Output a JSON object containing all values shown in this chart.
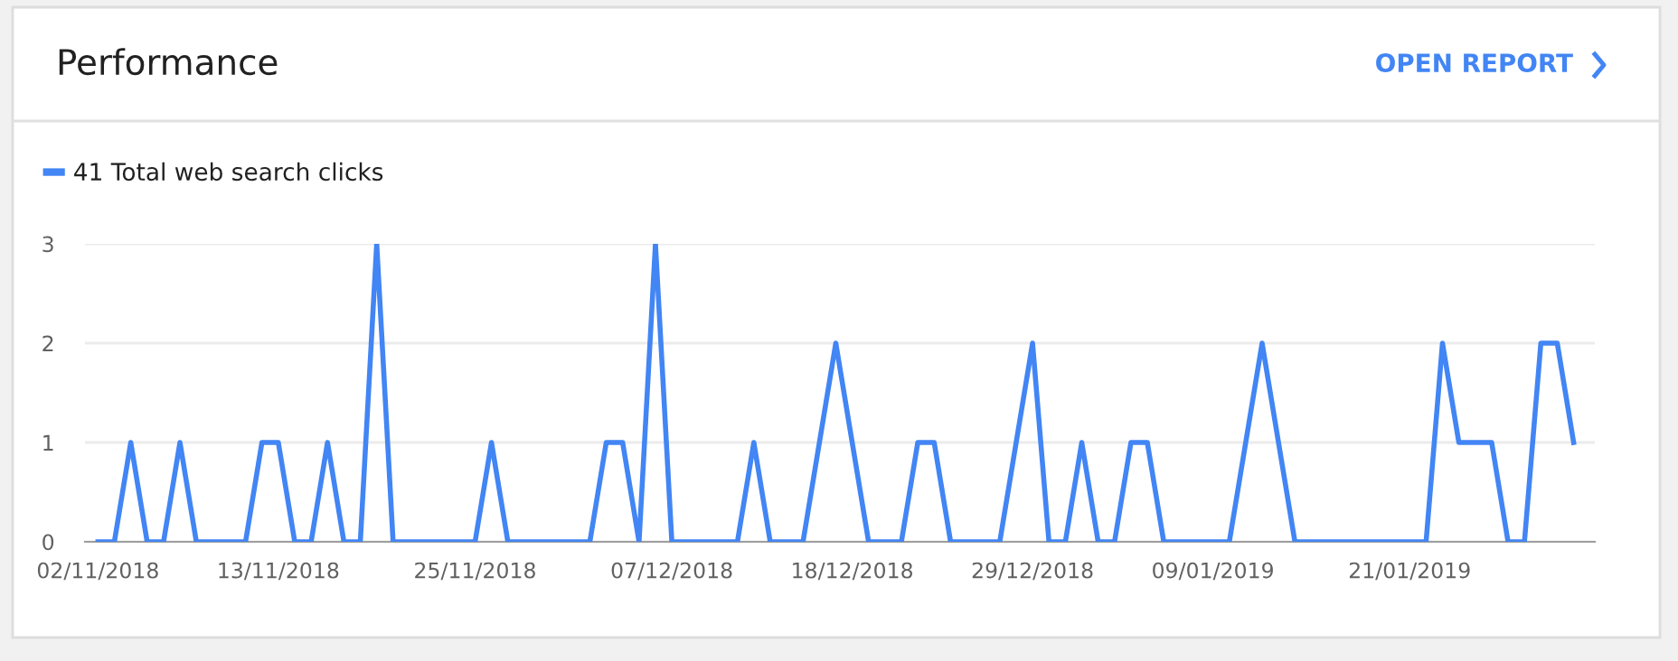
{
  "chart_data": {
    "type": "line",
    "title": "Performance",
    "annotations": [
      "OPEN REPORT"
    ],
    "x": [
      "2018-11-02",
      "2018-11-03",
      "2018-11-04",
      "2018-11-05",
      "2018-11-06",
      "2018-11-07",
      "2018-11-08",
      "2018-11-09",
      "2018-11-10",
      "2018-11-11",
      "2018-11-12",
      "2018-11-13",
      "2018-11-14",
      "2018-11-15",
      "2018-11-16",
      "2018-11-17",
      "2018-11-18",
      "2018-11-19",
      "2018-11-20",
      "2018-11-21",
      "2018-11-22",
      "2018-11-23",
      "2018-11-24",
      "2018-11-25",
      "2018-11-26",
      "2018-11-27",
      "2018-11-28",
      "2018-11-29",
      "2018-11-30",
      "2018-12-01",
      "2018-12-02",
      "2018-12-03",
      "2018-12-04",
      "2018-12-05",
      "2018-12-06",
      "2018-12-07",
      "2018-12-08",
      "2018-12-09",
      "2018-12-10",
      "2018-12-11",
      "2018-12-12",
      "2018-12-13",
      "2018-12-14",
      "2018-12-15",
      "2018-12-16",
      "2018-12-17",
      "2018-12-18",
      "2018-12-19",
      "2018-12-20",
      "2018-12-21",
      "2018-12-22",
      "2018-12-23",
      "2018-12-24",
      "2018-12-25",
      "2018-12-26",
      "2018-12-27",
      "2018-12-28",
      "2018-12-29",
      "2018-12-30",
      "2018-12-31",
      "2019-01-01",
      "2019-01-02",
      "2019-01-03",
      "2019-01-04",
      "2019-01-05",
      "2019-01-06",
      "2019-01-07",
      "2019-01-08",
      "2019-01-09",
      "2019-01-10",
      "2019-01-11",
      "2019-01-12",
      "2019-01-13",
      "2019-01-14",
      "2019-01-15",
      "2019-01-16",
      "2019-01-17",
      "2019-01-18",
      "2019-01-19",
      "2019-01-20",
      "2019-01-21",
      "2019-01-22",
      "2019-01-23",
      "2019-01-24",
      "2019-01-25",
      "2019-01-26",
      "2019-01-27",
      "2019-01-28",
      "2019-01-29",
      "2019-01-30",
      "2019-01-31"
    ],
    "series": [
      {
        "name": "41 Total web search clicks",
        "color": "#4285f4",
        "values": [
          0,
          0,
          1,
          0,
          0,
          1,
          0,
          0,
          0,
          0,
          1,
          1,
          0,
          0,
          1,
          0,
          0,
          3,
          0,
          0,
          0,
          0,
          0,
          0,
          1,
          0,
          0,
          0,
          0,
          0,
          0,
          1,
          1,
          0,
          3,
          0,
          0,
          0,
          0,
          0,
          1,
          0,
          0,
          0,
          1,
          2,
          1,
          0,
          0,
          0,
          1,
          1,
          0,
          0,
          0,
          0,
          1,
          2,
          0,
          0,
          1,
          0,
          0,
          1,
          1,
          0,
          0,
          0,
          0,
          0,
          1,
          2,
          1,
          0,
          0,
          0,
          0,
          0,
          0,
          0,
          0,
          0,
          2,
          1,
          1,
          1,
          0,
          0,
          2,
          2,
          1
        ]
      }
    ],
    "xlim": [
      "2018-11-01T05:00",
      "2019-02-01T07:00"
    ],
    "xticks": [
      {
        "value": "2018-11-02",
        "label": "02/11/2018"
      },
      {
        "value": "2018-11-13",
        "label": "13/11/2018"
      },
      {
        "value": "2018-11-25",
        "label": "25/11/2018"
      },
      {
        "value": "2018-12-07",
        "label": "07/12/2018"
      },
      {
        "value": "2018-12-18",
        "label": "18/12/2018"
      },
      {
        "value": "2018-12-29",
        "label": "29/12/2018"
      },
      {
        "value": "2019-01-09",
        "label": "09/01/2019"
      },
      {
        "value": "2019-01-21",
        "label": "21/01/2019"
      }
    ],
    "ylim": [
      0,
      3
    ],
    "yticks": [
      0,
      1,
      2,
      3
    ],
    "grid": "y",
    "legend": "top left",
    "marker": "none",
    "line_style": "solid"
  }
}
